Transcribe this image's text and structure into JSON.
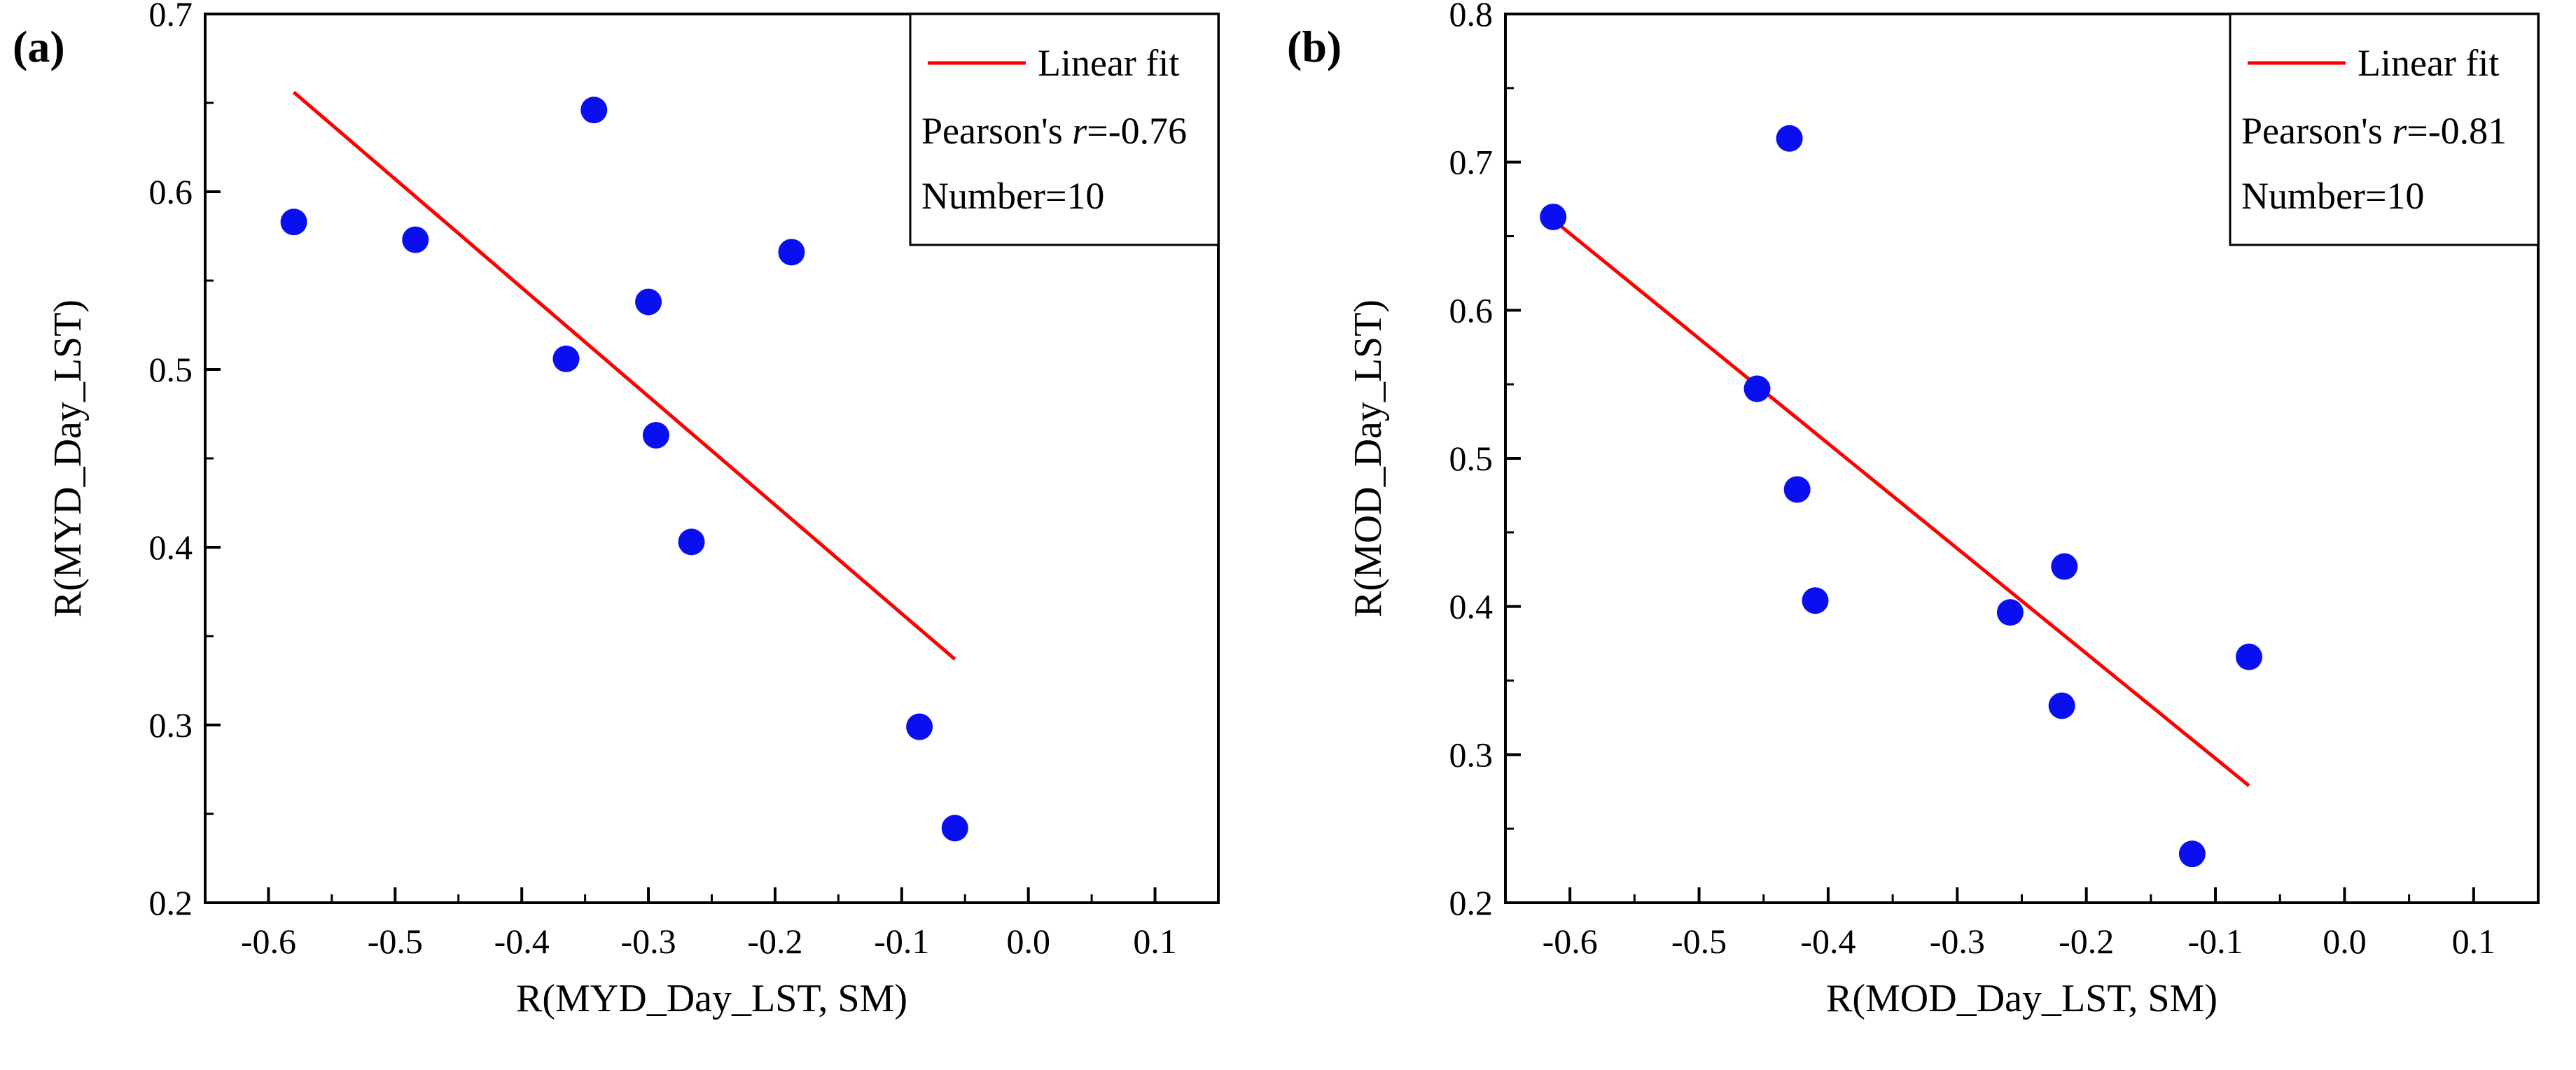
{
  "chart_data": [
    {
      "type": "scatter",
      "panel_label": "(a)",
      "xlabel": "R(MYD_Day_LST, SM)",
      "ylabel": "R(MYD_Day_LST)",
      "xlim": [
        -0.65,
        0.15
      ],
      "ylim": [
        0.2,
        0.7
      ],
      "xticks": [
        -0.6,
        -0.5,
        -0.4,
        -0.3,
        -0.2,
        -0.1,
        0.0,
        0.1
      ],
      "xtick_labels": [
        "-0.6",
        "-0.5",
        "-0.4",
        "-0.3",
        "-0.2",
        "-0.1",
        "0.0",
        "0.1"
      ],
      "yticks": [
        0.2,
        0.3,
        0.4,
        0.5,
        0.6,
        0.7
      ],
      "ytick_labels": [
        "0.2",
        "0.3",
        "0.4",
        "0.5",
        "0.6",
        "0.7"
      ],
      "points": {
        "x": [
          -0.58,
          -0.484,
          -0.365,
          -0.343,
          -0.3,
          -0.294,
          -0.266,
          -0.187,
          -0.086,
          -0.058
        ],
        "y": [
          0.583,
          0.573,
          0.506,
          0.646,
          0.538,
          0.463,
          0.403,
          0.566,
          0.299,
          0.242
        ]
      },
      "point_color": "#0a0ff0",
      "fit_line": {
        "x": [
          -0.58,
          -0.058
        ],
        "y": [
          0.656,
          0.337
        ],
        "color": "#ff0000"
      },
      "legend": {
        "position": "top-right",
        "fit_label": "Linear fit",
        "pearson_prefix": "Pearson's ",
        "pearson_symbol": "r",
        "pearson_value": "=-0.76",
        "number_label": "Number=10"
      }
    },
    {
      "type": "scatter",
      "panel_label": "(b)",
      "xlabel": "R(MOD_Day_LST, SM)",
      "ylabel": "R(MOD_Day_LST)",
      "xlim": [
        -0.65,
        0.15
      ],
      "ylim": [
        0.2,
        0.8
      ],
      "xticks": [
        -0.6,
        -0.5,
        -0.4,
        -0.3,
        -0.2,
        -0.1,
        0.0,
        0.1
      ],
      "xtick_labels": [
        "-0.6",
        "-0.5",
        "-0.4",
        "-0.3",
        "-0.2",
        "-0.1",
        "0.0",
        "0.1"
      ],
      "yticks": [
        0.2,
        0.3,
        0.4,
        0.5,
        0.6,
        0.7,
        0.8
      ],
      "ytick_labels": [
        "0.2",
        "0.3",
        "0.4",
        "0.5",
        "0.6",
        "0.7",
        "0.8"
      ],
      "points": {
        "x": [
          -0.613,
          -0.455,
          -0.43,
          -0.424,
          -0.41,
          -0.259,
          -0.217,
          -0.219,
          -0.118,
          -0.074
        ],
        "y": [
          0.663,
          0.547,
          0.716,
          0.479,
          0.404,
          0.396,
          0.427,
          0.333,
          0.233,
          0.366
        ]
      },
      "point_color": "#0a0ff0",
      "fit_line": {
        "x": [
          -0.613,
          -0.074
        ],
        "y": [
          0.661,
          0.279
        ],
        "color": "#ff0000"
      },
      "legend": {
        "position": "top-right",
        "fit_label": "Linear fit",
        "pearson_prefix": "Pearson's ",
        "pearson_symbol": "r",
        "pearson_value": "=-0.81",
        "number_label": "Number=10"
      }
    }
  ]
}
